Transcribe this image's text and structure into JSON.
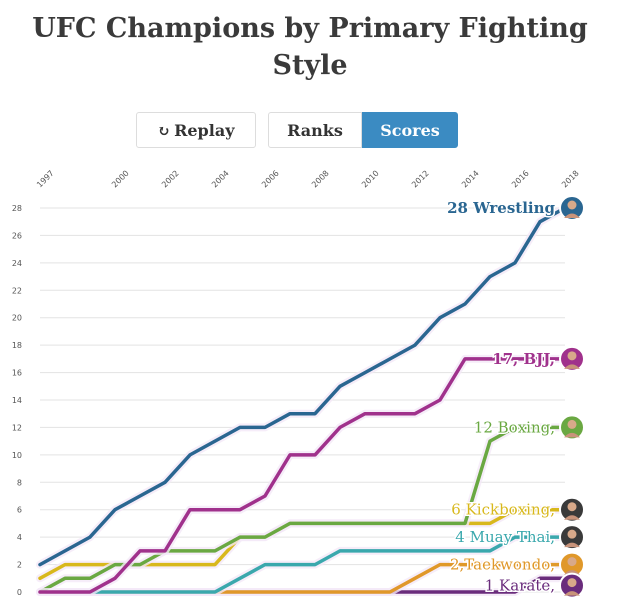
{
  "title": "UFC Champions by Primary Fighting Style",
  "controls": {
    "replay_label": "Replay",
    "replay_icon": "replay-icon",
    "ranks_label": "Ranks",
    "scores_label": "Scores",
    "active": "Scores",
    "active_color": "#3b8bc2"
  },
  "chart_data": {
    "type": "line",
    "title": "UFC Champions by Primary Fighting Style",
    "xlabel": "",
    "ylabel": "",
    "xlim": [
      1997,
      2018
    ],
    "ylim": [
      0,
      28
    ],
    "x_ticks": [
      "1997",
      "2000",
      "2002",
      "2004",
      "2006",
      "2008",
      "2010",
      "2012",
      "2014",
      "2016",
      "2018"
    ],
    "y_ticks": [
      "0",
      "2",
      "4",
      "6",
      "8",
      "10",
      "12",
      "14",
      "16",
      "18",
      "20",
      "22",
      "24",
      "26",
      "28"
    ],
    "grid": true,
    "x": [
      1997,
      1998,
      1999,
      2000,
      2001,
      2002,
      2003,
      2004,
      2005,
      2006,
      2007,
      2008,
      2009,
      2010,
      2011,
      2012,
      2013,
      2014,
      2015,
      2016,
      2017,
      2018
    ],
    "series": [
      {
        "name": "Wrestling",
        "label": "28 Wrestling",
        "color": "#2a6691",
        "avatar_color": "#2a6691",
        "values": [
          2,
          3,
          4,
          6,
          7,
          8,
          10,
          11,
          12,
          12,
          13,
          13,
          15,
          16,
          17,
          18,
          20,
          21,
          23,
          24,
          27,
          28
        ]
      },
      {
        "name": "BJJ",
        "label": "17, BJJ,",
        "color": "#a0318c",
        "avatar_color": "#a0318c",
        "values": [
          0,
          0,
          0,
          1,
          3,
          3,
          6,
          6,
          6,
          7,
          10,
          10,
          12,
          13,
          13,
          13,
          14,
          17,
          17,
          17,
          17,
          17
        ]
      },
      {
        "name": "Boxing",
        "label": "12 Boxing,",
        "color": "#6aa842",
        "avatar_color": "#6aa842",
        "values": [
          0,
          1,
          1,
          2,
          2,
          3,
          3,
          3,
          4,
          4,
          5,
          5,
          5,
          5,
          5,
          5,
          5,
          5,
          11,
          12,
          12,
          12
        ]
      },
      {
        "name": "Kickboxing",
        "label": "6 Kickboxing,",
        "color": "#d8b81c",
        "avatar_color": "#3a3a3a",
        "values": [
          1,
          2,
          2,
          2,
          2,
          2,
          2,
          2,
          4,
          4,
          5,
          5,
          5,
          5,
          5,
          5,
          5,
          5,
          5,
          6,
          6,
          6
        ]
      },
      {
        "name": "Muay Thai",
        "label": "4 Muay Thai,",
        "color": "#3aa8ad",
        "avatar_color": "#3a3a3a",
        "values": [
          0,
          0,
          0,
          0,
          0,
          0,
          0,
          0,
          1,
          2,
          2,
          2,
          3,
          3,
          3,
          3,
          3,
          3,
          3,
          4,
          4,
          4
        ]
      },
      {
        "name": "Taekwondo",
        "label": "2,Taekwondo,",
        "color": "#e0982a",
        "avatar_color": "#e0982a",
        "values": [
          0,
          0,
          0,
          0,
          0,
          0,
          0,
          0,
          0,
          0,
          0,
          0,
          0,
          0,
          0,
          1,
          2,
          2,
          2,
          2,
          2,
          2
        ]
      },
      {
        "name": "Karate",
        "label": "1 Karate,",
        "color": "#6a2c7c",
        "avatar_color": "#6a2c7c",
        "values": [
          0,
          0,
          0,
          0,
          0,
          0,
          0,
          0,
          0,
          0,
          0,
          0,
          0,
          0,
          0,
          0,
          0,
          0,
          0,
          0,
          1,
          1
        ]
      }
    ]
  }
}
